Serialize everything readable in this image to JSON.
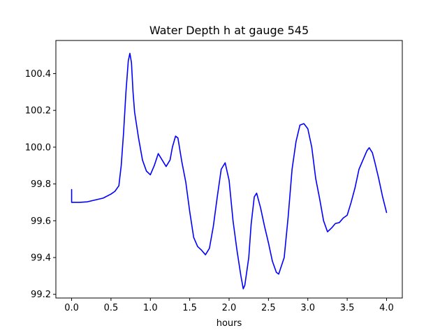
{
  "chart_data": {
    "type": "line",
    "title": "Water Depth h at gauge 545",
    "xlabel": "hours",
    "ylabel": "",
    "xlim": [
      -0.2,
      4.2
    ],
    "ylim": [
      99.18,
      100.58
    ],
    "xticks": [
      0.0,
      0.5,
      1.0,
      1.5,
      2.0,
      2.5,
      3.0,
      3.5,
      4.0
    ],
    "xtick_labels": [
      "0.0",
      "0.5",
      "1.0",
      "1.5",
      "2.0",
      "2.5",
      "3.0",
      "3.5",
      "4.0"
    ],
    "yticks": [
      99.2,
      99.4,
      99.6,
      99.8,
      100.0,
      100.2,
      100.4
    ],
    "ytick_labels": [
      "99.2",
      "99.4",
      "99.6",
      "99.8",
      "100.0",
      "100.2",
      "100.4"
    ],
    "grid": false,
    "series": [
      {
        "color": "#0000ff",
        "points": [
          [
            0.0,
            99.77
          ],
          [
            0.0,
            99.7
          ],
          [
            0.1,
            99.7
          ],
          [
            0.2,
            99.703
          ],
          [
            0.3,
            99.713
          ],
          [
            0.4,
            99.723
          ],
          [
            0.5,
            99.745
          ],
          [
            0.55,
            99.76
          ],
          [
            0.6,
            99.79
          ],
          [
            0.63,
            99.9
          ],
          [
            0.66,
            100.08
          ],
          [
            0.69,
            100.3
          ],
          [
            0.72,
            100.47
          ],
          [
            0.74,
            100.51
          ],
          [
            0.76,
            100.46
          ],
          [
            0.78,
            100.3
          ],
          [
            0.8,
            100.19
          ],
          [
            0.85,
            100.05
          ],
          [
            0.9,
            99.93
          ],
          [
            0.95,
            99.87
          ],
          [
            1.0,
            99.85
          ],
          [
            1.05,
            99.9
          ],
          [
            1.1,
            99.965
          ],
          [
            1.15,
            99.93
          ],
          [
            1.2,
            99.895
          ],
          [
            1.25,
            99.93
          ],
          [
            1.28,
            100.0
          ],
          [
            1.32,
            100.06
          ],
          [
            1.35,
            100.05
          ],
          [
            1.4,
            99.92
          ],
          [
            1.45,
            99.81
          ],
          [
            1.5,
            99.65
          ],
          [
            1.55,
            99.51
          ],
          [
            1.6,
            99.46
          ],
          [
            1.65,
            99.44
          ],
          [
            1.7,
            99.415
          ],
          [
            1.75,
            99.45
          ],
          [
            1.8,
            99.57
          ],
          [
            1.85,
            99.73
          ],
          [
            1.9,
            99.88
          ],
          [
            1.95,
            99.915
          ],
          [
            2.0,
            99.82
          ],
          [
            2.05,
            99.6
          ],
          [
            2.1,
            99.44
          ],
          [
            2.15,
            99.3
          ],
          [
            2.18,
            99.23
          ],
          [
            2.2,
            99.25
          ],
          [
            2.25,
            99.4
          ],
          [
            2.28,
            99.58
          ],
          [
            2.32,
            99.73
          ],
          [
            2.35,
            99.75
          ],
          [
            2.4,
            99.67
          ],
          [
            2.45,
            99.57
          ],
          [
            2.5,
            99.48
          ],
          [
            2.55,
            99.38
          ],
          [
            2.6,
            99.32
          ],
          [
            2.63,
            99.31
          ],
          [
            2.7,
            99.4
          ],
          [
            2.75,
            99.62
          ],
          [
            2.8,
            99.88
          ],
          [
            2.85,
            100.03
          ],
          [
            2.9,
            100.12
          ],
          [
            2.95,
            100.128
          ],
          [
            3.0,
            100.1
          ],
          [
            3.05,
            100.0
          ],
          [
            3.1,
            99.83
          ],
          [
            3.15,
            99.72
          ],
          [
            3.2,
            99.6
          ],
          [
            3.25,
            99.54
          ],
          [
            3.3,
            99.56
          ],
          [
            3.35,
            99.585
          ],
          [
            3.4,
            99.59
          ],
          [
            3.45,
            99.615
          ],
          [
            3.5,
            99.63
          ],
          [
            3.55,
            99.7
          ],
          [
            3.6,
            99.78
          ],
          [
            3.65,
            99.88
          ],
          [
            3.7,
            99.93
          ],
          [
            3.75,
            99.98
          ],
          [
            3.78,
            99.997
          ],
          [
            3.82,
            99.97
          ],
          [
            3.85,
            99.92
          ],
          [
            3.9,
            99.83
          ],
          [
            3.95,
            99.73
          ],
          [
            4.0,
            99.645
          ]
        ]
      }
    ]
  }
}
